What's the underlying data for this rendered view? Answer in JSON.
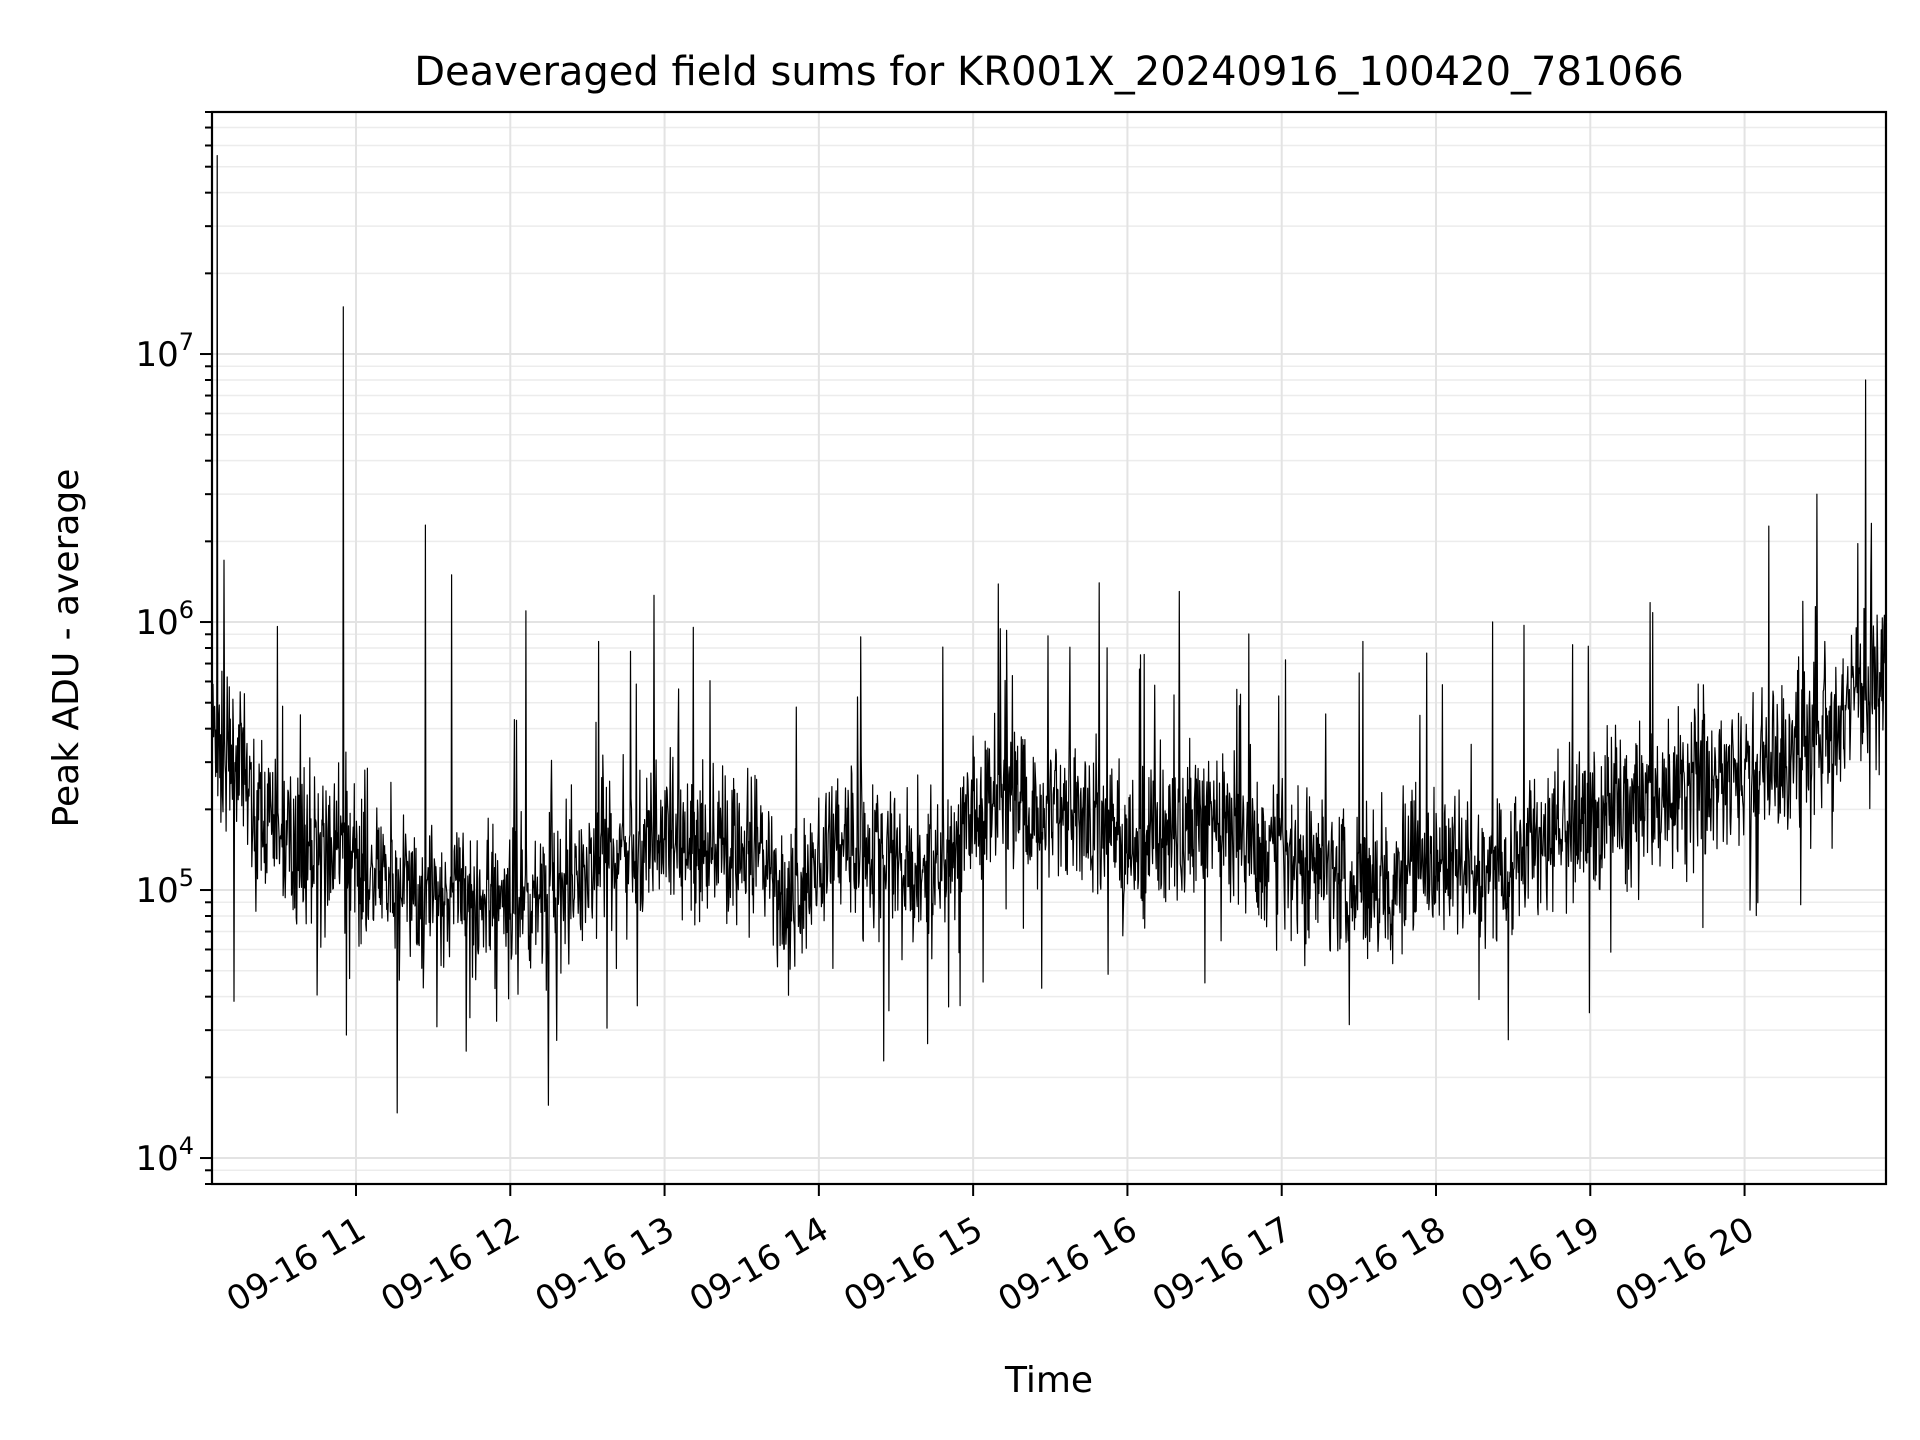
{
  "chart_data": {
    "type": "line",
    "title": "Deaveraged field sums for KR001X_20240916_100420_781066",
    "xlabel": "Time",
    "ylabel": "Peak ADU - average",
    "yscale": "log",
    "ylim": [
      8000,
      80000000
    ],
    "xlim": [
      "2024-09-16 10:04",
      "2024-09-16 20:55"
    ],
    "grid": true,
    "x_ticks": [
      "09-16 11",
      "09-16 12",
      "09-16 13",
      "09-16 14",
      "09-16 15",
      "09-16 16",
      "09-16 17",
      "09-16 18",
      "09-16 19",
      "09-16 20"
    ],
    "y_ticks": [
      {
        "base": "10",
        "exp": "4"
      },
      {
        "base": "10",
        "exp": "5"
      },
      {
        "base": "10",
        "exp": "6"
      },
      {
        "base": "10",
        "exp": "7"
      }
    ],
    "series": [
      {
        "color": "#000000",
        "x": [
          "2024-09-16 10:04",
          "2024-09-16 10:08",
          "2024-09-16 10:15",
          "2024-09-16 10:20",
          "2024-09-16 10:30",
          "2024-09-16 10:40",
          "2024-09-16 10:50",
          "2024-09-16 10:55",
          "2024-09-16 11:00",
          "2024-09-16 11:15",
          "2024-09-16 11:25",
          "2024-09-16 11:30",
          "2024-09-16 11:45",
          "2024-09-16 11:55",
          "2024-09-16 12:00",
          "2024-09-16 12:10",
          "2024-09-16 12:20",
          "2024-09-16 12:30",
          "2024-09-16 12:40",
          "2024-09-16 12:50",
          "2024-09-16 13:00",
          "2024-09-16 13:15",
          "2024-09-16 13:30",
          "2024-09-16 13:40",
          "2024-09-16 13:50",
          "2024-09-16 14:00",
          "2024-09-16 14:10",
          "2024-09-16 14:20",
          "2024-09-16 14:30",
          "2024-09-16 14:45",
          "2024-09-16 14:55",
          "2024-09-16 15:00",
          "2024-09-16 15:10",
          "2024-09-16 15:20",
          "2024-09-16 15:30",
          "2024-09-16 15:40",
          "2024-09-16 15:50",
          "2024-09-16 16:00",
          "2024-09-16 16:10",
          "2024-09-16 16:20",
          "2024-09-16 16:30",
          "2024-09-16 16:40",
          "2024-09-16 16:50",
          "2024-09-16 17:00",
          "2024-09-16 17:15",
          "2024-09-16 17:30",
          "2024-09-16 17:45",
          "2024-09-16 18:00",
          "2024-09-16 18:15",
          "2024-09-16 18:30",
          "2024-09-16 18:45",
          "2024-09-16 19:00",
          "2024-09-16 19:15",
          "2024-09-16 19:30",
          "2024-09-16 19:45",
          "2024-09-16 20:00",
          "2024-09-16 20:10",
          "2024-09-16 20:20",
          "2024-09-16 20:30",
          "2024-09-16 20:40",
          "2024-09-16 20:50",
          "2024-09-16 20:55"
        ],
        "y": [
          400000,
          300000,
          250000,
          200000,
          160000,
          150000,
          140000,
          130000,
          125000,
          110000,
          100000,
          95000,
          95000,
          90000,
          90000,
          95000,
          100000,
          120000,
          140000,
          150000,
          160000,
          150000,
          140000,
          110000,
          90000,
          120000,
          160000,
          140000,
          120000,
          130000,
          140000,
          200000,
          220000,
          210000,
          200000,
          190000,
          180000,
          140000,
          150000,
          170000,
          180000,
          160000,
          140000,
          130000,
          120000,
          110000,
          110000,
          120000,
          125000,
          135000,
          160000,
          190000,
          210000,
          230000,
          250000,
          260000,
          280000,
          300000,
          380000,
          500000,
          550000,
          600000
        ]
      }
    ],
    "spikes": [
      {
        "x": "2024-09-16 10:06",
        "y": 55000000
      },
      {
        "x": "2024-09-16 10:55",
        "y": 15000000
      },
      {
        "x": "2024-09-16 11:27",
        "y": 2300000
      },
      {
        "x": "2024-09-16 11:37",
        "y": 1500000
      },
      {
        "x": "2024-09-16 12:06",
        "y": 1100000
      },
      {
        "x": "2024-09-16 15:49",
        "y": 1400000
      },
      {
        "x": "2024-09-16 16:20",
        "y": 1300000
      },
      {
        "x": "2024-09-16 18:22",
        "y": 1000000
      },
      {
        "x": "2024-09-16 20:28",
        "y": 3000000
      },
      {
        "x": "2024-09-16 20:47",
        "y": 8000000
      },
      {
        "x": "2024-09-16 20:49",
        "y": 1500000
      }
    ]
  }
}
